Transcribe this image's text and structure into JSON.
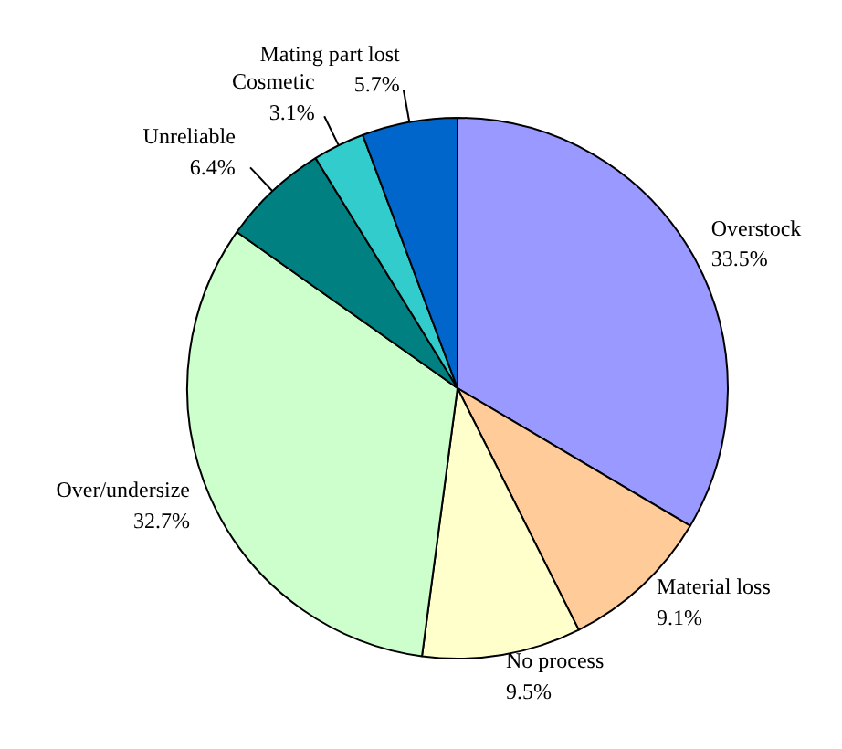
{
  "chart_data": {
    "type": "pie",
    "categories": [
      "Overstock",
      "Material loss",
      "No process",
      "Over/undersize",
      "Unreliable",
      "Cosmetic",
      "Mating part lost"
    ],
    "values": [
      33.5,
      9.1,
      9.5,
      32.7,
      6.4,
      3.1,
      5.7
    ],
    "value_labels": [
      "33.5%",
      "9.1%",
      "9.5%",
      "32.7%",
      "6.4%",
      "3.1%",
      "5.7%"
    ],
    "colors": [
      "#9999ff",
      "#ffcc99",
      "#ffffcc",
      "#ccffcc",
      "#008080",
      "#33cccc",
      "#0066cc"
    ]
  }
}
